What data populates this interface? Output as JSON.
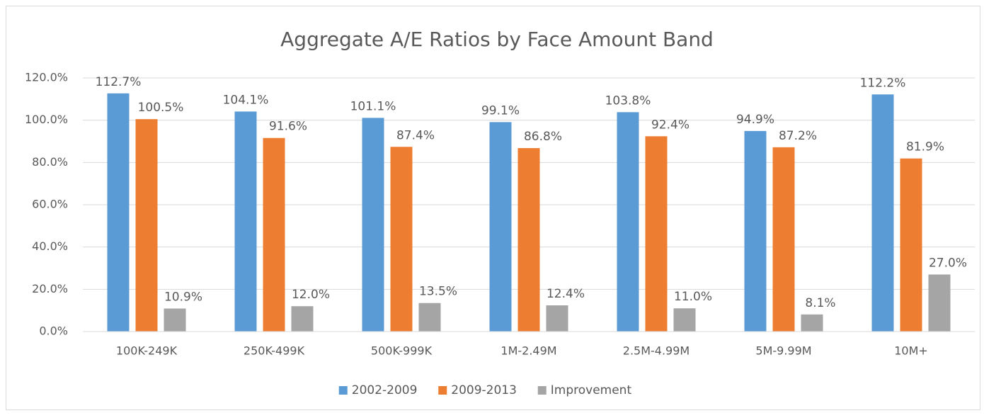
{
  "chart_data": {
    "type": "bar",
    "title": "Aggregate A/E Ratios by Face Amount Band",
    "categories": [
      "100K-249K",
      "250K-499K",
      "500K-999K",
      "1M-2.49M",
      "2.5M-4.99M",
      "5M-9.99M",
      "10M+"
    ],
    "series": [
      {
        "name": "2002-2009",
        "color": "#5b9bd5",
        "values": [
          112.7,
          104.1,
          101.1,
          99.1,
          103.8,
          94.9,
          112.2
        ],
        "value_labels": [
          "112.7%",
          "104.1%",
          "101.1%",
          "99.1%",
          "103.8%",
          "94.9%",
          "112.2%"
        ]
      },
      {
        "name": "2009-2013",
        "color": "#ed7d31",
        "values": [
          100.5,
          91.6,
          87.4,
          86.8,
          92.4,
          87.2,
          81.9
        ],
        "value_labels": [
          "100.5%",
          "91.6%",
          "87.4%",
          "86.8%",
          "92.4%",
          "87.2%",
          "81.9%"
        ]
      },
      {
        "name": "Improvement",
        "color": "#a5a5a5",
        "values": [
          10.9,
          12.0,
          13.5,
          12.4,
          11.0,
          8.1,
          27.0
        ],
        "value_labels": [
          "10.9%",
          "12.0%",
          "13.5%",
          "12.4%",
          "11.0%",
          "8.1%",
          "27.0%"
        ]
      }
    ],
    "ylim": [
      0,
      120
    ],
    "yticks": [
      {
        "value": 0,
        "label": "0.0%"
      },
      {
        "value": 20,
        "label": "20.0%"
      },
      {
        "value": 40,
        "label": "40.0%"
      },
      {
        "value": 60,
        "label": "60.0%"
      },
      {
        "value": 80,
        "label": "80.0%"
      },
      {
        "value": 100,
        "label": "100.0%"
      },
      {
        "value": 120,
        "label": "120.0%"
      }
    ],
    "grid": true,
    "legend": "bottom"
  }
}
